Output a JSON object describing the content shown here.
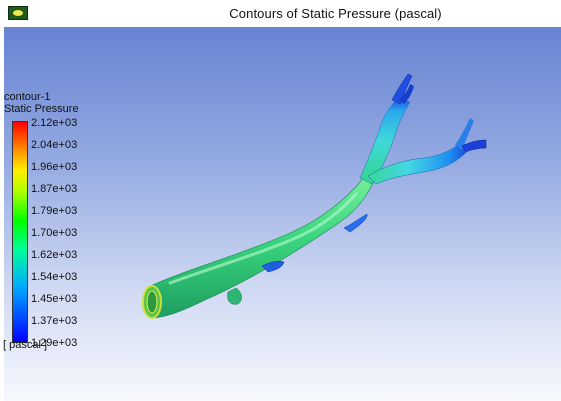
{
  "window": {
    "title": "Contours of Static Pressure (pascal)",
    "icon": "fluent-graphics-icon"
  },
  "legend": {
    "name": "contour-1",
    "variable": "Static Pressure",
    "unit": "[ pascal ]",
    "ticks": [
      "2.12e+03",
      "2.04e+03",
      "1.96e+03",
      "1.87e+03",
      "1.79e+03",
      "1.70e+03",
      "1.62e+03",
      "1.54e+03",
      "1.45e+03",
      "1.37e+03",
      "1.29e+03"
    ],
    "colors": [
      "#ff0000",
      "#ff8800",
      "#ffee00",
      "#aaff00",
      "#00ff00",
      "#00ff9a",
      "#00aaff",
      "#0000ff"
    ]
  },
  "viewport": {
    "background_top": "#6783d3",
    "background_bottom": "#f7f9fe",
    "geometry": "vessel-bifurcation"
  }
}
